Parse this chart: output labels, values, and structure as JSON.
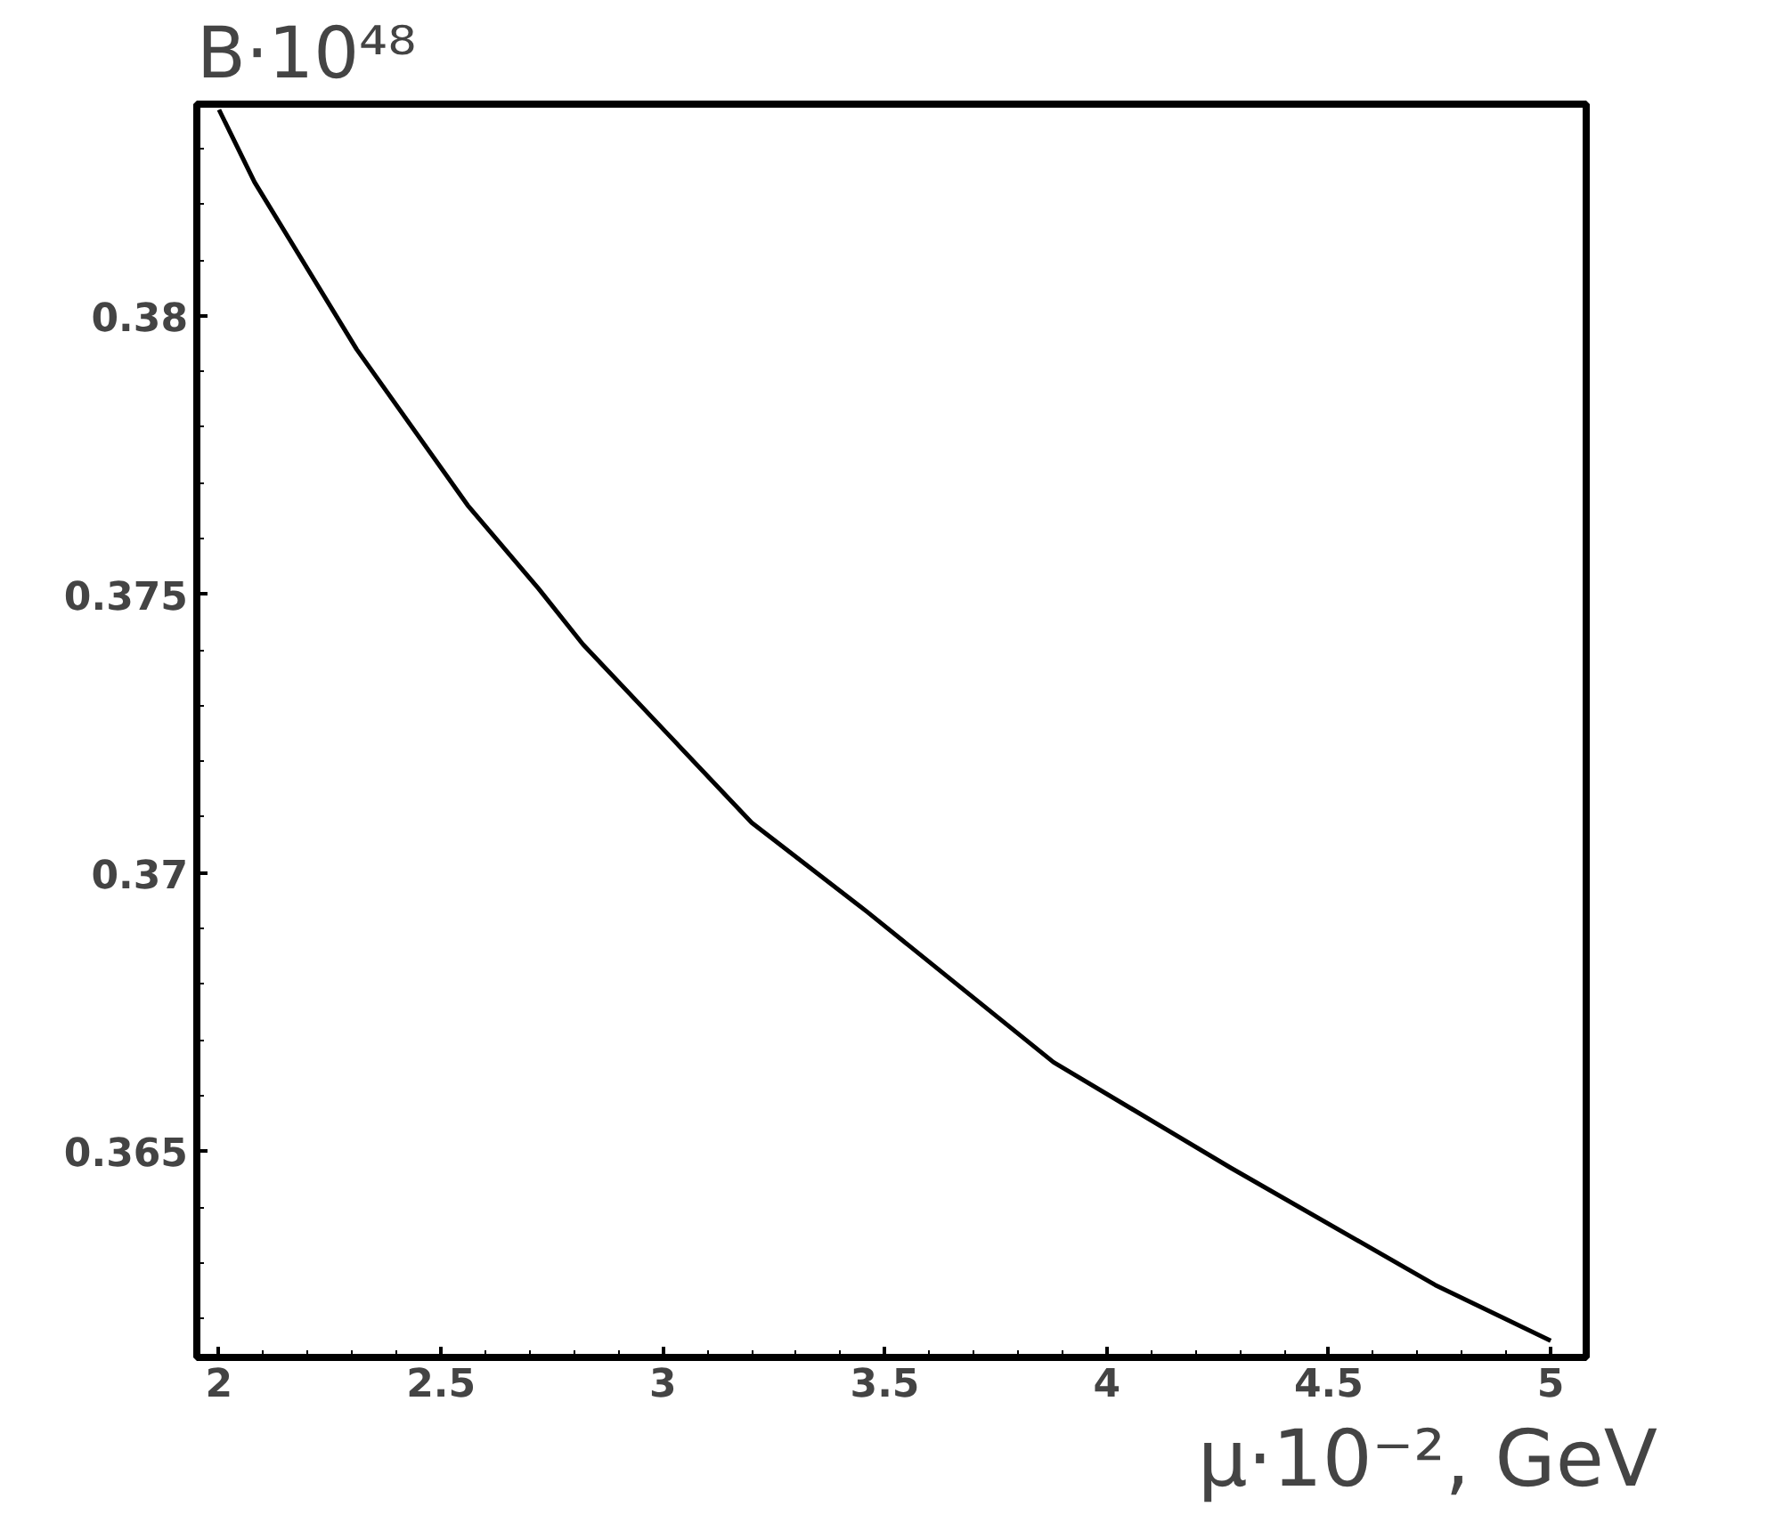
{
  "chart_data": {
    "type": "line",
    "title": "B·10⁴⁸",
    "xlabel": "μ·10⁻², GeV",
    "x": [
      2,
      2.08,
      2.31,
      2.56,
      2.72,
      2.82,
      3.01,
      3.2,
      3.46,
      3.88,
      4.28,
      4.74,
      5
    ],
    "series": [
      {
        "color": "#000000",
        "values": [
          0.3837,
          0.3824,
          0.3794,
          0.3766,
          0.3751,
          0.3741,
          0.3725,
          0.3709,
          0.3693,
          0.3666,
          0.3647,
          0.3626,
          0.3616
        ]
      }
    ],
    "xlim": [
      1.95,
      5.08
    ],
    "ylim": [
      0.3613,
      0.3838
    ],
    "xticks": [
      2,
      2.5,
      3,
      3.5,
      4,
      4.5,
      5
    ],
    "yticks": [
      0.365,
      0.37,
      0.375,
      0.38
    ],
    "grid": false,
    "line_style": "solid"
  }
}
